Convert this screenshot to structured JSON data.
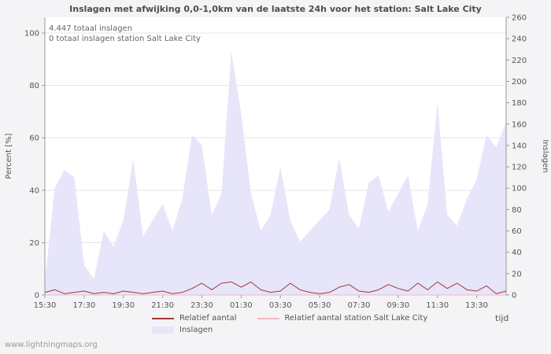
{
  "annotations": {
    "total": "4.447 totaal inslagen",
    "station_total": "0 totaal inslagen station Salt Lake City"
  },
  "watermark": "www.lightningmaps.org",
  "colors": {
    "plot_background": "#ffffff",
    "outer_background": "#f4f4f6",
    "gridline": "#e4e4e4",
    "axis": "#999999",
    "text": "#555555"
  },
  "chart_data": {
    "type": "area",
    "title": "Inslagen met afwijking 0,0-1,0km van de laatste 24h voor het station: Salt Lake City",
    "x_axis_label": "tijd",
    "x_tick_labels": [
      "15:30",
      "17:30",
      "19:30",
      "21:30",
      "23:30",
      "01:30",
      "03:30",
      "05:30",
      "07:30",
      "09:30",
      "11:30",
      "13:30"
    ],
    "left_axis": {
      "label": "Percent  [%]",
      "ticks": [
        0,
        20,
        40,
        60,
        80,
        100
      ],
      "range": [
        0,
        106
      ]
    },
    "right_axis": {
      "label": "Inslagen",
      "ticks": [
        0,
        20,
        40,
        60,
        80,
        100,
        120,
        140,
        160,
        180,
        200,
        220,
        240,
        260
      ],
      "range": [
        0,
        260
      ]
    },
    "legend_position": "bottom",
    "grid": "horizontal",
    "series": [
      {
        "name": "Inslagen",
        "type": "area",
        "axis": "right",
        "color": "#e7e5f9",
        "values": [
          12,
          100,
          117,
          110,
          28,
          15,
          60,
          45,
          70,
          128,
          55,
          70,
          85,
          60,
          90,
          150,
          140,
          75,
          95,
          228,
          170,
          95,
          60,
          75,
          120,
          70,
          50,
          60,
          70,
          80,
          128,
          75,
          62,
          105,
          112,
          78,
          95,
          112,
          60,
          85,
          180,
          75,
          65,
          90,
          108,
          150,
          138,
          162
        ]
      },
      {
        "name": "Relatief aantal",
        "type": "line",
        "axis": "left",
        "color": "#a03838",
        "values": [
          1,
          2,
          0.5,
          1,
          1.5,
          0.5,
          1,
          0.5,
          1.5,
          1,
          0.5,
          1,
          1.5,
          0.5,
          1,
          2.5,
          4.5,
          2,
          4.5,
          5,
          3,
          5,
          2,
          1,
          1.5,
          4.5,
          2,
          1,
          0.5,
          1,
          3,
          4,
          1.5,
          1,
          2,
          4,
          2.5,
          1.5,
          4.5,
          2,
          5,
          2.5,
          4.5,
          2,
          1.5,
          3.5,
          0.5,
          1.5
        ]
      },
      {
        "name": "Relatief aantal station Salt Lake City",
        "type": "line",
        "axis": "left",
        "color": "#f2b7c0",
        "values": [
          0,
          0,
          0,
          0,
          0,
          0,
          0,
          0,
          0,
          0,
          0,
          0,
          0,
          0,
          0,
          0,
          0,
          0,
          0,
          0,
          0,
          0,
          0,
          0,
          0,
          0,
          0,
          0,
          0,
          0,
          0,
          0,
          0,
          0,
          0,
          0,
          0,
          0,
          0,
          0,
          0,
          0,
          0,
          0,
          0,
          0,
          0,
          0
        ]
      }
    ]
  }
}
